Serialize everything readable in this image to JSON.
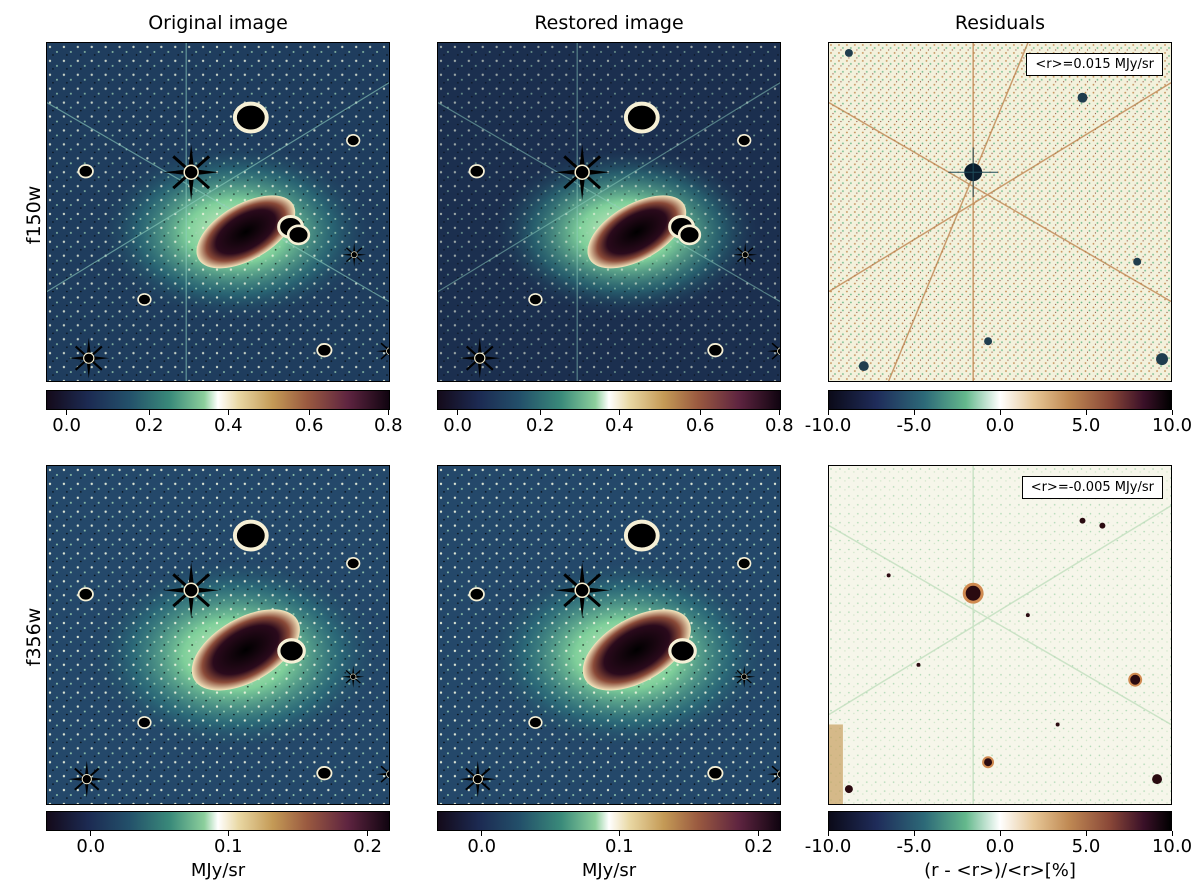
{
  "figure": {
    "column_titles": [
      "Original image",
      "Restored image",
      "Residuals"
    ],
    "row_labels": [
      "f150w",
      "f356w"
    ],
    "rows": [
      {
        "band": "f150w",
        "residual_annotation": "<r>=0.015 MJy/sr",
        "image_colorbar_ticks": [
          "0.0",
          "0.2",
          "0.4",
          "0.6",
          "0.8"
        ],
        "residual_colorbar_ticks": [
          "-10.0",
          "-5.0",
          "0.0",
          "5.0",
          "10.0"
        ]
      },
      {
        "band": "f356w",
        "residual_annotation": "<r>=-0.005 MJy/sr",
        "image_colorbar_ticks": [
          "0.0",
          "0.1",
          "0.2"
        ],
        "residual_colorbar_ticks": [
          "-10.0",
          "-5.0",
          "0.0",
          "5.0",
          "10.0"
        ]
      }
    ],
    "colorbar_labels": {
      "image": "MJy/sr",
      "residual": "(r - <r>)/<r>[%]"
    },
    "colors": {
      "background_dark": "#1f3d5e",
      "diffuse_glow": "#7fcf9a",
      "residual_bg": "#f3f1dc"
    }
  }
}
